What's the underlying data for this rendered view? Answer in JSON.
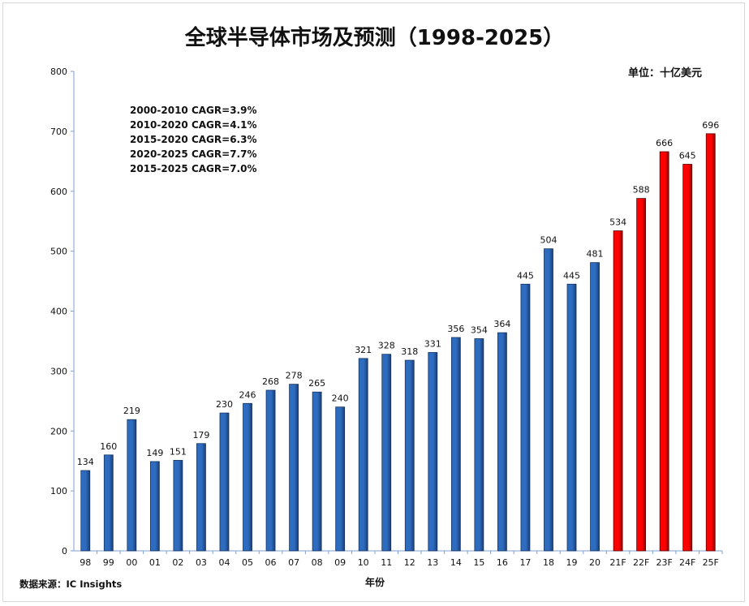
{
  "title": "全球半导体市场及预测（1998-2025）",
  "unit_label": "单位：十亿美元",
  "cagr_notes": [
    "2000-2010  CAGR=3.9%",
    "2010-2020  CAGR=4.1%",
    "2015-2020  CAGR=6.3%",
    "2020-2025  CAGR=7.7%",
    "2015-2025  CAGR=7.0%"
  ],
  "source": "数据来源：IC Insights",
  "colors": {
    "actual": "#2e6cc0",
    "actual_dark": "#1a3f78",
    "forecast": "#ff0000",
    "forecast_dark": "#8a0000",
    "axis": "#7f9fd0"
  },
  "chart_data": {
    "type": "bar",
    "xlabel": "年份",
    "ylabel": "",
    "ylim": [
      0,
      800
    ],
    "yticks": [
      0,
      100,
      200,
      300,
      400,
      500,
      600,
      700,
      800
    ],
    "grid": false,
    "categories": [
      "98",
      "99",
      "00",
      "01",
      "02",
      "03",
      "04",
      "05",
      "06",
      "07",
      "08",
      "09",
      "10",
      "11",
      "12",
      "13",
      "14",
      "15",
      "16",
      "17",
      "18",
      "19",
      "20",
      "21F",
      "22F",
      "23F",
      "24F",
      "25F"
    ],
    "values": [
      134,
      160,
      219,
      149,
      151,
      179,
      230,
      246,
      268,
      278,
      265,
      240,
      321,
      328,
      318,
      331,
      356,
      354,
      364,
      445,
      504,
      445,
      481,
      534,
      588,
      666,
      645,
      696
    ],
    "forecast": [
      false,
      false,
      false,
      false,
      false,
      false,
      false,
      false,
      false,
      false,
      false,
      false,
      false,
      false,
      false,
      false,
      false,
      false,
      false,
      false,
      false,
      false,
      false,
      true,
      true,
      true,
      true,
      true
    ],
    "data_labels": true
  }
}
